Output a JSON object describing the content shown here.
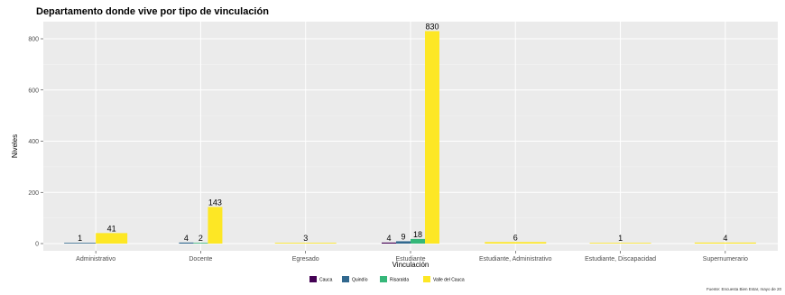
{
  "chart_data": {
    "type": "bar",
    "title": "Departamento donde vive por tipo de vinculación",
    "xlabel": "Vinculación",
    "ylabel": "Niveles",
    "ylim": [
      0,
      850
    ],
    "yticks": [
      0,
      200,
      400,
      600,
      800
    ],
    "grid": true,
    "legend_position": "bottom",
    "categories": [
      "Administrativo",
      "Docente",
      "Egresado",
      "Estudiante",
      "Estudiante, Administrativo",
      "Estudiante, Discapacidad",
      "Supernumerario"
    ],
    "series": [
      {
        "name": "Cauca",
        "color": "#440154",
        "values": [
          null,
          null,
          null,
          4,
          null,
          null,
          null
        ]
      },
      {
        "name": "Quindío",
        "color": "#31688e",
        "values": [
          1,
          4,
          null,
          9,
          null,
          null,
          null
        ]
      },
      {
        "name": "Risaralda",
        "color": "#35b779",
        "values": [
          null,
          2,
          null,
          18,
          null,
          null,
          null
        ]
      },
      {
        "name": "Valle del Cauca",
        "color": "#fde725",
        "values": [
          41,
          143,
          3,
          830,
          6,
          1,
          4
        ]
      }
    ],
    "caption": "Fuente: Encuesta Bien Estar, mayo de 20"
  }
}
